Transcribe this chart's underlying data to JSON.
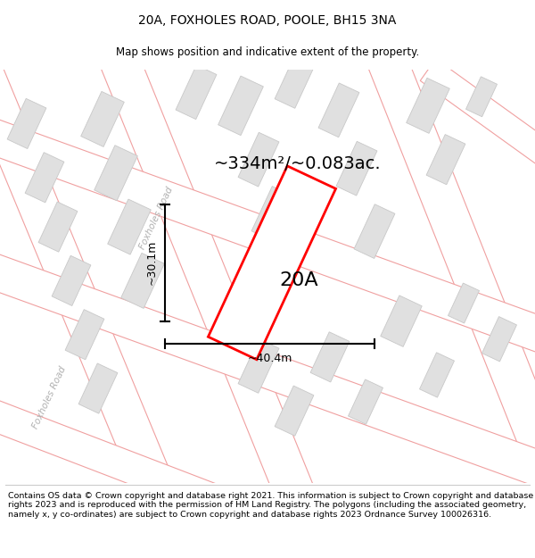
{
  "title": "20A, FOXHOLES ROAD, POOLE, BH15 3NA",
  "subtitle": "Map shows position and indicative extent of the property.",
  "area_text": "~334m²/~0.083ac.",
  "label_20a": "20A",
  "dim_width": "~40.4m",
  "dim_height": "~30.1m",
  "road_label_1": "Foxholes Road",
  "road_label_2": "Foxholes Road",
  "footer": "Contains OS data © Crown copyright and database right 2021. This information is subject to Crown copyright and database rights 2023 and is reproduced with the permission of HM Land Registry. The polygons (including the associated geometry, namely x, y co-ordinates) are subject to Crown copyright and database rights 2023 Ordnance Survey 100026316.",
  "map_bg": "#ffffff",
  "road_edge_color": "#f0a0a0",
  "road_fill_color": "#ffffff",
  "building_fill": "#e0e0e0",
  "building_edge": "#c8c8c8",
  "plot_color": "#ff0000",
  "title_fontsize": 10,
  "subtitle_fontsize": 8.5,
  "footer_fontsize": 6.8,
  "area_fontsize": 14,
  "label_fontsize": 16,
  "dim_fontsize": 9,
  "road_label_fontsize": 7.5,
  "road_label_color": "#b0b0b0"
}
